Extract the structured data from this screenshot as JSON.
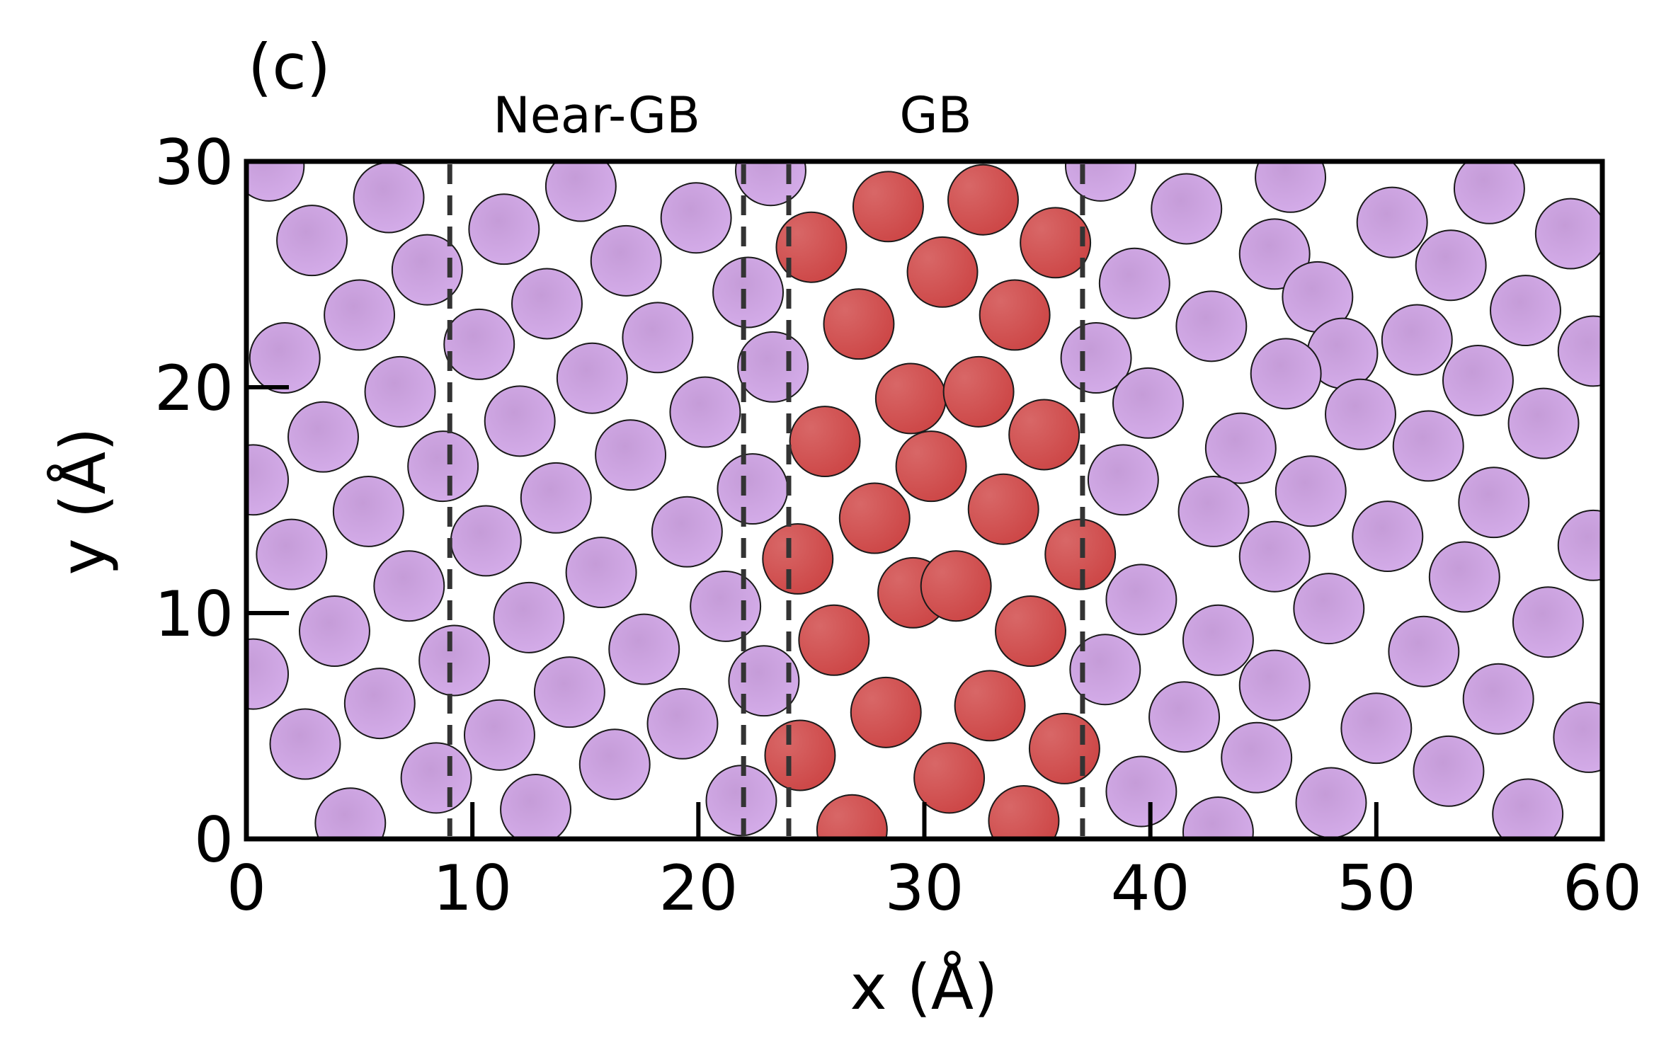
{
  "chart_data": {
    "type": "scatter",
    "panel_label": "(c)",
    "xlabel": "x (Å)",
    "ylabel": "y (Å)",
    "xlim": [
      0,
      60
    ],
    "ylim": [
      0,
      30
    ],
    "xticks": [
      0,
      10,
      20,
      30,
      40,
      50,
      60
    ],
    "yticks": [
      0,
      10,
      20,
      30
    ],
    "atom_radius": 1.55,
    "colors": {
      "bulk": "#cfa7e3",
      "gb": "#d24d4d",
      "edge": "#1a1a1a",
      "dashed_line": "#333333"
    },
    "region_labels": [
      {
        "text": "Near-GB",
        "x": 15.5
      },
      {
        "text": "GB",
        "x": 30.5
      }
    ],
    "boundaries": [
      9,
      22,
      24,
      37
    ],
    "series": [
      {
        "kind": "bulk",
        "points": [
          [
            1.0,
            29.8
          ],
          [
            6.3,
            28.4
          ],
          [
            14.8,
            28.9
          ],
          [
            23.2,
            29.6
          ],
          [
            37.8,
            29.8
          ],
          [
            41.6,
            27.9
          ],
          [
            46.2,
            29.3
          ],
          [
            50.7,
            27.3
          ],
          [
            55.0,
            28.8
          ],
          [
            58.6,
            26.8
          ],
          [
            2.9,
            26.5
          ],
          [
            11.4,
            27.0
          ],
          [
            16.8,
            25.6
          ],
          [
            19.9,
            27.5
          ],
          [
            22.2,
            24.2
          ],
          [
            39.3,
            24.6
          ],
          [
            45.5,
            25.9
          ],
          [
            47.4,
            24.0
          ],
          [
            53.3,
            25.4
          ],
          [
            56.6,
            23.4
          ],
          [
            5.0,
            23.2
          ],
          [
            8.0,
            25.2
          ],
          [
            13.3,
            23.7
          ],
          [
            18.2,
            22.2
          ],
          [
            23.3,
            20.9
          ],
          [
            37.6,
            21.3
          ],
          [
            42.7,
            22.7
          ],
          [
            48.5,
            21.5
          ],
          [
            51.8,
            22.1
          ],
          [
            54.5,
            20.3
          ],
          [
            59.6,
            21.6
          ],
          [
            1.7,
            21.3
          ],
          [
            6.8,
            19.8
          ],
          [
            10.3,
            21.9
          ],
          [
            12.1,
            18.5
          ],
          [
            15.3,
            20.4
          ],
          [
            20.3,
            18.9
          ],
          [
            39.9,
            19.3
          ],
          [
            44.0,
            17.3
          ],
          [
            46.0,
            20.6
          ],
          [
            49.3,
            18.8
          ],
          [
            57.4,
            18.4
          ],
          [
            3.4,
            17.8
          ],
          [
            8.7,
            16.5
          ],
          [
            17.0,
            17.0
          ],
          [
            22.4,
            15.5
          ],
          [
            38.8,
            15.9
          ],
          [
            42.8,
            14.5
          ],
          [
            47.1,
            15.4
          ],
          [
            52.3,
            17.4
          ],
          [
            55.2,
            14.9
          ],
          [
            59.6,
            13.0
          ],
          [
            0.3,
            15.9
          ],
          [
            5.4,
            14.5
          ],
          [
            10.6,
            13.2
          ],
          [
            13.7,
            15.1
          ],
          [
            19.5,
            13.6
          ],
          [
            45.5,
            12.5
          ],
          [
            50.5,
            13.4
          ],
          [
            53.9,
            11.6
          ],
          [
            57.6,
            9.6
          ],
          [
            2.0,
            12.6
          ],
          [
            7.2,
            11.2
          ],
          [
            15.7,
            11.8
          ],
          [
            21.2,
            10.3
          ],
          [
            39.6,
            10.6
          ],
          [
            43.0,
            8.8
          ],
          [
            47.9,
            10.2
          ],
          [
            52.1,
            8.3
          ],
          [
            3.9,
            9.2
          ],
          [
            9.2,
            7.9
          ],
          [
            12.5,
            9.8
          ],
          [
            17.6,
            8.4
          ],
          [
            22.9,
            7.0
          ],
          [
            38.0,
            7.5
          ],
          [
            41.5,
            5.4
          ],
          [
            45.5,
            6.8
          ],
          [
            50.0,
            4.9
          ],
          [
            55.4,
            6.2
          ],
          [
            0.3,
            7.3
          ],
          [
            5.9,
            6.0
          ],
          [
            14.3,
            6.5
          ],
          [
            19.3,
            5.1
          ],
          [
            44.7,
            3.6
          ],
          [
            48.0,
            1.6
          ],
          [
            53.2,
            3.0
          ],
          [
            56.7,
            1.1
          ],
          [
            59.4,
            4.5
          ],
          [
            2.6,
            4.2
          ],
          [
            8.4,
            2.7
          ],
          [
            11.2,
            4.6
          ],
          [
            16.3,
            3.3
          ],
          [
            21.9,
            1.7
          ],
          [
            39.6,
            2.1
          ],
          [
            43.0,
            0.3
          ],
          [
            4.6,
            0.7
          ],
          [
            12.8,
            1.3
          ]
        ]
      },
      {
        "kind": "gb",
        "points": [
          [
            28.4,
            28.0
          ],
          [
            32.6,
            28.3
          ],
          [
            25.0,
            26.2
          ],
          [
            30.8,
            25.1
          ],
          [
            35.8,
            26.4
          ],
          [
            27.1,
            22.8
          ],
          [
            34.0,
            23.2
          ],
          [
            29.4,
            19.5
          ],
          [
            32.4,
            19.8
          ],
          [
            25.6,
            17.6
          ],
          [
            30.3,
            16.5
          ],
          [
            35.3,
            17.9
          ],
          [
            27.8,
            14.2
          ],
          [
            33.5,
            14.6
          ],
          [
            24.4,
            12.4
          ],
          [
            29.5,
            10.9
          ],
          [
            31.4,
            11.2
          ],
          [
            36.9,
            12.6
          ],
          [
            26.0,
            8.8
          ],
          [
            34.7,
            9.2
          ],
          [
            28.3,
            5.6
          ],
          [
            32.9,
            5.9
          ],
          [
            24.5,
            3.7
          ],
          [
            31.1,
            2.7
          ],
          [
            36.2,
            4.0
          ],
          [
            26.8,
            0.4
          ],
          [
            34.4,
            0.8
          ]
        ]
      }
    ]
  }
}
